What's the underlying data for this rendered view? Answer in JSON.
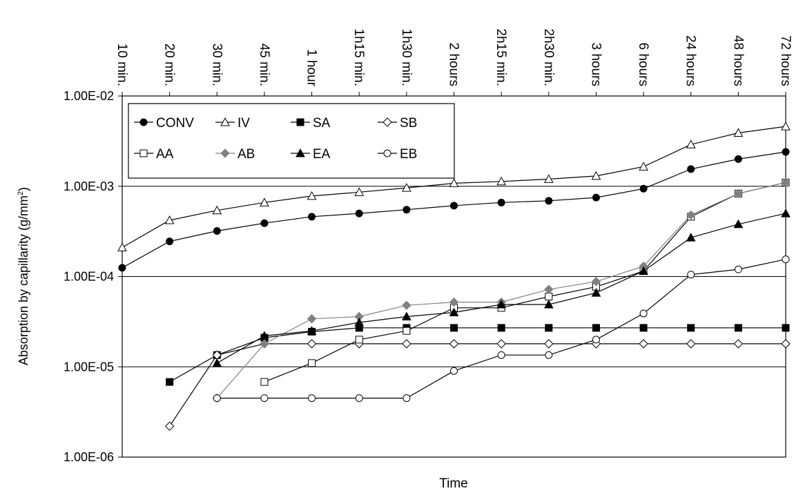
{
  "chart_data": {
    "type": "line",
    "title": "",
    "xlabel": "Time",
    "ylabel": "Absorption by capillarity (g/mm",
    "ylabel_sup": "2",
    "ylabel_close": ")",
    "y_scale": "log",
    "ylim": [
      1e-06,
      0.01
    ],
    "y_ticks": [
      "1.00E-02",
      "1.00E-03",
      "1.00E-04",
      "1.00E-05",
      "1.00E-06"
    ],
    "grid": "horizontal",
    "legend_position": "top-left",
    "categories": [
      "10 min.",
      "20 min.",
      "30 min.",
      "45 min.",
      "1 hour",
      "1h15 min.",
      "1h30 min.",
      "2 hours",
      "2h15 min.",
      "2h30 min.",
      "3 hours",
      "6 hours",
      "24 hours",
      "48 hours",
      "72 hours"
    ],
    "series": [
      {
        "name": "CONV",
        "marker": "circle",
        "fill": "#000000",
        "line": "#000000",
        "values": [
          0.000125,
          0.000245,
          0.00032,
          0.00039,
          0.00046,
          0.0005,
          0.00055,
          0.00061,
          0.00066,
          0.00069,
          0.00075,
          0.00094,
          0.00155,
          0.002,
          0.0024
        ]
      },
      {
        "name": "IV",
        "marker": "triangle",
        "fill": "#ffffff",
        "line": "#000000",
        "values": [
          0.00021,
          0.00042,
          0.00054,
          0.00066,
          0.00078,
          0.00086,
          0.00096,
          0.00108,
          0.00113,
          0.0012,
          0.0013,
          0.00165,
          0.0029,
          0.0039,
          0.0046
        ]
      },
      {
        "name": "SA",
        "marker": "square",
        "fill": "#000000",
        "line": "#000000",
        "values": [
          null,
          6.8e-06,
          1.35e-05,
          2.1e-05,
          2.45e-05,
          2.7e-05,
          2.7e-05,
          2.7e-05,
          2.7e-05,
          2.7e-05,
          2.7e-05,
          2.7e-05,
          2.7e-05,
          2.7e-05,
          2.7e-05
        ]
      },
      {
        "name": "SB",
        "marker": "diamond",
        "fill": "#ffffff",
        "line": "#000000",
        "values": [
          null,
          2.2e-06,
          1.35e-05,
          1.8e-05,
          1.8e-05,
          1.8e-05,
          1.8e-05,
          1.8e-05,
          1.8e-05,
          1.8e-05,
          1.8e-05,
          1.8e-05,
          1.8e-05,
          1.8e-05,
          1.8e-05
        ]
      },
      {
        "name": "AA",
        "marker": "square",
        "fill": "#ffffff",
        "line": "#000000",
        "values": [
          null,
          null,
          null,
          6.8e-06,
          1.1e-05,
          2e-05,
          2.5e-05,
          4.5e-05,
          4.5e-05,
          6e-05,
          7.7e-05,
          0.000115,
          0.00046,
          0.00083,
          0.0011
        ]
      },
      {
        "name": "AB",
        "marker": "diamond",
        "fill": "#808080",
        "line": "#808080",
        "values": [
          null,
          null,
          4.5e-06,
          1.8e-05,
          3.4e-05,
          3.6e-05,
          4.8e-05,
          5.2e-05,
          5.2e-05,
          7.2e-05,
          8.8e-05,
          0.00013,
          0.00048,
          0.00083,
          0.0011
        ]
      },
      {
        "name": "EA",
        "marker": "triangle",
        "fill": "#000000",
        "line": "#000000",
        "values": [
          null,
          null,
          1.1e-05,
          2.2e-05,
          2.5e-05,
          3.1e-05,
          3.6e-05,
          4e-05,
          4.9e-05,
          4.9e-05,
          6.6e-05,
          0.000115,
          0.00027,
          0.00038,
          0.0005
        ]
      },
      {
        "name": "EB",
        "marker": "circle",
        "fill": "#ffffff",
        "line": "#000000",
        "values": [
          null,
          null,
          4.5e-06,
          4.5e-06,
          4.5e-06,
          4.5e-06,
          4.5e-06,
          9e-06,
          1.35e-05,
          1.35e-05,
          2e-05,
          3.9e-05,
          0.000105,
          0.00012,
          0.000155
        ]
      }
    ]
  }
}
